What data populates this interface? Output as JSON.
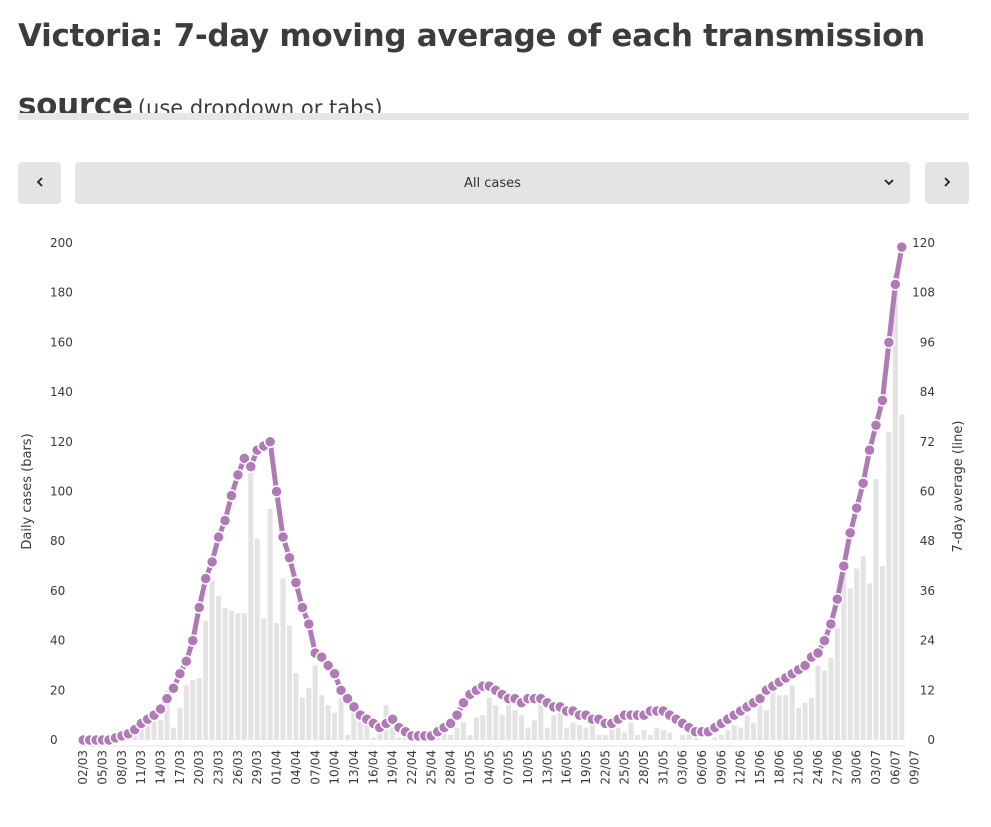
{
  "header": {
    "title": "Victoria: 7-day moving average of each transmission source",
    "subtitle": "(use dropdown or tabs)"
  },
  "controls": {
    "selected": "All cases",
    "prev_icon": "chevron-left-icon",
    "next_icon": "chevron-right-icon",
    "dropdown_icon": "chevron-down-icon"
  },
  "colors": {
    "bar": "#e3e3e3",
    "line": "#b07ab6",
    "divider": "#e6e6e6",
    "control_bg": "#e4e4e4"
  },
  "chart_data": {
    "type": "bar",
    "title": "Victoria: 7-day moving average of each transmission source",
    "ylabel_left": "Daily cases (bars)",
    "ylabel_right": "7-day average (line)",
    "ylim_left": [
      0,
      200
    ],
    "ylim_right": [
      0,
      120
    ],
    "yticks_left": [
      0,
      20,
      40,
      60,
      80,
      100,
      120,
      140,
      160,
      180,
      200
    ],
    "yticks_right": [
      0,
      12,
      24,
      36,
      48,
      60,
      72,
      84,
      96,
      108,
      120
    ],
    "xtick_labels": [
      "02/03",
      "05/03",
      "08/03",
      "11/03",
      "14/03",
      "17/03",
      "20/03",
      "23/03",
      "26/03",
      "29/03",
      "01/04",
      "04/04",
      "07/04",
      "10/04",
      "13/04",
      "16/04",
      "19/04",
      "22/04",
      "25/04",
      "28/04",
      "01/05",
      "04/05",
      "07/05",
      "10/05",
      "13/05",
      "16/05",
      "19/05",
      "22/05",
      "25/05",
      "28/05",
      "31/05",
      "03/06",
      "06/06",
      "09/06",
      "12/06",
      "15/06",
      "18/06",
      "21/06",
      "24/06",
      "27/06",
      "30/06",
      "03/07",
      "06/07",
      "09/07"
    ],
    "series": [
      {
        "name": "Daily cases",
        "type": "bar",
        "axis": "left",
        "values": [
          1,
          1,
          0,
          1,
          1,
          2,
          2,
          3,
          4,
          8,
          6,
          12,
          8,
          20,
          5,
          13,
          22,
          24,
          25,
          48,
          64,
          58,
          53,
          52,
          51,
          51,
          112,
          81,
          49,
          93,
          47,
          65,
          46,
          27,
          17,
          21,
          30,
          18,
          14,
          11,
          17,
          2,
          15,
          8,
          6,
          1,
          5,
          14,
          5,
          1,
          2,
          1,
          1,
          1,
          4,
          6,
          5,
          2,
          5,
          7,
          2,
          9,
          10,
          17,
          14,
          10,
          15,
          12,
          10,
          5,
          8,
          18,
          5,
          10,
          13,
          5,
          7,
          6,
          5,
          8,
          2,
          2,
          5,
          5,
          3,
          7,
          2,
          4,
          2,
          5,
          4,
          3,
          0,
          2,
          3,
          2,
          0,
          0,
          1,
          2,
          4,
          6,
          5,
          10,
          7,
          14,
          12,
          21,
          18,
          18,
          22,
          13,
          15,
          17,
          30,
          28,
          33,
          45,
          72,
          61,
          69,
          74,
          63,
          105,
          70,
          124,
          188,
          131
        ]
      },
      {
        "name": "7-day average",
        "type": "line",
        "axis": "right",
        "values": [
          0,
          0,
          0,
          0,
          0,
          0.5,
          1,
          1.5,
          2.5,
          4,
          5,
          6,
          7.5,
          10,
          12.5,
          16,
          19,
          24,
          32,
          39,
          43,
          49,
          53,
          59,
          64,
          68,
          66,
          70,
          71,
          72,
          60,
          49,
          44,
          38,
          32,
          28,
          21,
          20,
          18,
          16,
          12,
          10,
          8,
          6,
          5,
          4,
          3,
          4,
          5,
          3,
          2,
          1,
          1,
          1,
          1,
          2,
          3,
          4,
          6,
          9,
          11,
          12,
          13,
          13,
          12,
          11,
          10,
          10,
          9,
          10,
          10,
          10,
          9,
          8,
          8,
          7,
          7,
          6,
          6,
          5,
          5,
          4,
          4,
          5,
          6,
          6,
          6,
          6,
          7,
          7,
          7,
          6,
          5,
          4,
          3,
          2,
          2,
          2,
          3,
          4,
          5,
          6,
          7,
          8,
          9,
          10,
          12,
          13,
          14,
          15,
          16,
          17,
          18,
          20,
          21,
          24,
          28,
          34,
          42,
          50,
          56,
          62,
          70,
          76,
          82,
          96,
          110,
          119
        ]
      }
    ]
  }
}
